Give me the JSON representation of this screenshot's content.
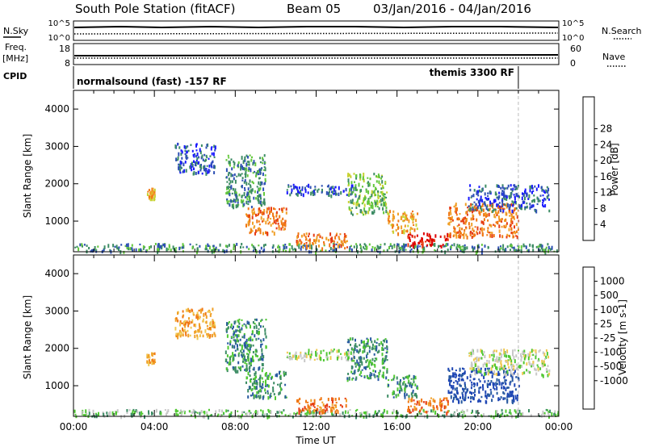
{
  "header": {
    "title": "South Pole Station (fitACF)",
    "beam": "Beam 05",
    "dates": "03/Jan/2016 - 04/Jan/2016"
  },
  "top_panels": {
    "nsky_label": "N.Sky",
    "nsearch_label": "N.Search",
    "freq_label_1": "Freq.",
    "freq_label_2": "[MHz]",
    "nave_label": "Nave",
    "cpid_label": "CPID",
    "left_top_ticks": [
      "10^5",
      "10^0"
    ],
    "right_top_ticks": [
      "10^5",
      "10^0"
    ],
    "left_freq_ticks": [
      "18",
      "8"
    ],
    "right_nave_ticks": [
      "60",
      "0"
    ],
    "cpid_modes": [
      "normalsound (fast) -157 RF",
      "themis 3300 RF"
    ],
    "cpid_switch_hour": 22
  },
  "chart_data": [
    {
      "type": "heatmap",
      "panel": "power",
      "xlabel": "",
      "ylabel": "Slant Range [km]",
      "ylim": [
        180,
        4500
      ],
      "yticks": [
        "1000",
        "2000",
        "3000",
        "4000"
      ],
      "xlim_hours": [
        0,
        24
      ],
      "colorbar_label": "Power [dB]",
      "colorbar_ticks": [
        "4",
        "8",
        "12",
        "16",
        "20",
        "24",
        "28"
      ],
      "colorbar_colors": [
        "#1a1aff",
        "#2e50b4",
        "#3c8c64",
        "#64c83c",
        "#c8d232",
        "#f0a028",
        "#f07814",
        "#e63c14",
        "#dc0000"
      ],
      "echo_regions": [
        {
          "t0": 0.0,
          "t1": 24.0,
          "r0": 200,
          "r1": 420,
          "level": 2
        },
        {
          "t0": 3.6,
          "t1": 4.0,
          "r0": 1600,
          "r1": 1900,
          "level": 5
        },
        {
          "t0": 5.0,
          "t1": 7.0,
          "r0": 2300,
          "r1": 3100,
          "level": 1
        },
        {
          "t0": 7.5,
          "t1": 9.5,
          "r0": 1400,
          "r1": 2800,
          "level": 2
        },
        {
          "t0": 8.5,
          "t1": 10.5,
          "r0": 700,
          "r1": 1400,
          "level": 6
        },
        {
          "t0": 10.5,
          "t1": 14.0,
          "r0": 1700,
          "r1": 2000,
          "level": 1
        },
        {
          "t0": 11.0,
          "t1": 13.5,
          "r0": 300,
          "r1": 700,
          "level": 6
        },
        {
          "t0": 13.5,
          "t1": 15.5,
          "r0": 1200,
          "r1": 2300,
          "level": 3
        },
        {
          "t0": 15.5,
          "t1": 17.0,
          "r0": 700,
          "r1": 1300,
          "level": 5
        },
        {
          "t0": 16.5,
          "t1": 18.5,
          "r0": 350,
          "r1": 700,
          "level": 8
        },
        {
          "t0": 18.5,
          "t1": 22.0,
          "r0": 600,
          "r1": 1500,
          "level": 6
        },
        {
          "t0": 19.5,
          "t1": 23.5,
          "r0": 1300,
          "r1": 2000,
          "level": 1
        }
      ]
    },
    {
      "type": "heatmap",
      "panel": "velocity",
      "xlabel": "Time UT",
      "ylabel": "Slant Range [km]",
      "ylim": [
        180,
        4500
      ],
      "yticks": [
        "1000",
        "2000",
        "3000",
        "4000"
      ],
      "xlim_hours": [
        0,
        24
      ],
      "xticks": [
        "00:00",
        "04:00",
        "08:00",
        "12:00",
        "16:00",
        "20:00",
        "00:00"
      ],
      "colorbar_label": "Velocity [m s-1]",
      "colorbar_ticks": [
        "1000",
        "500",
        "100",
        "25",
        "-25",
        "-100",
        "-500",
        "-1000"
      ],
      "colorbar_colors": [
        "#1e46b4",
        "#285aa0",
        "#3c8c64",
        "#50c832",
        "#c8c8c8",
        "#f0c850",
        "#f0a028",
        "#f07814",
        "#e63c14",
        "#dc0000"
      ],
      "echo_regions": [
        {
          "t0": 0.0,
          "t1": 24.0,
          "r0": 200,
          "r1": 380,
          "level": 3
        },
        {
          "t0": 3.6,
          "t1": 4.0,
          "r0": 1600,
          "r1": 1900,
          "level": 6
        },
        {
          "t0": 5.0,
          "t1": 7.0,
          "r0": 2300,
          "r1": 3100,
          "level": 6
        },
        {
          "t0": 7.5,
          "t1": 9.5,
          "r0": 1400,
          "r1": 2800,
          "level": 2
        },
        {
          "t0": 8.5,
          "t1": 10.5,
          "r0": 700,
          "r1": 1400,
          "level": 2
        },
        {
          "t0": 10.5,
          "t1": 14.0,
          "r0": 1700,
          "r1": 2000,
          "level": 4
        },
        {
          "t0": 11.0,
          "t1": 13.5,
          "r0": 300,
          "r1": 700,
          "level": 7
        },
        {
          "t0": 13.5,
          "t1": 15.5,
          "r0": 1200,
          "r1": 2300,
          "level": 2
        },
        {
          "t0": 15.5,
          "t1": 17.0,
          "r0": 700,
          "r1": 1300,
          "level": 2
        },
        {
          "t0": 16.5,
          "t1": 18.5,
          "r0": 300,
          "r1": 700,
          "level": 7
        },
        {
          "t0": 18.5,
          "t1": 22.0,
          "r0": 600,
          "r1": 1500,
          "level": 0
        },
        {
          "t0": 19.5,
          "t1": 23.5,
          "r0": 1300,
          "r1": 2000,
          "level": 4
        }
      ]
    }
  ]
}
